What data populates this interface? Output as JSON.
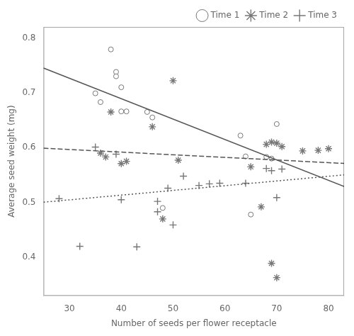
{
  "chart_data": {
    "type": "scatter",
    "xlabel": "Number of seeds per flower receptacle",
    "ylabel": "Average seed weight (mg)",
    "xlim": [
      25,
      83
    ],
    "ylim": [
      0.33,
      0.82
    ],
    "xticks": [
      30,
      40,
      50,
      60,
      70,
      80
    ],
    "yticks": [
      0.4,
      0.5,
      0.6,
      0.7,
      0.8
    ],
    "grid": false,
    "legend": "upper right",
    "series": [
      {
        "name": "Time 1",
        "marker": "circle",
        "color": "#777777",
        "x": [
          35,
          36,
          38,
          39,
          39,
          40,
          40,
          41,
          45,
          46,
          48,
          63,
          64,
          65,
          68,
          69,
          70
        ],
        "values": [
          0.699,
          0.683,
          0.779,
          0.738,
          0.73,
          0.71,
          0.666,
          0.666,
          0.665,
          0.655,
          0.49,
          0.622,
          0.584,
          0.478,
          0.583,
          0.58,
          0.643
        ],
        "fit": {
          "x": [
            25,
            83
          ],
          "values": [
            0.745,
            0.52924
          ],
          "color": "#555555",
          "line_style": "solid"
        }
      },
      {
        "name": "Time 2",
        "marker": "star",
        "color": "#777777",
        "x": [
          36,
          37,
          38,
          40,
          41,
          46,
          48,
          50,
          51,
          65,
          67,
          68,
          69,
          69,
          70,
          70,
          71,
          75,
          78,
          80
        ],
        "values": [
          0.59,
          0.583,
          0.665,
          0.571,
          0.575,
          0.638,
          0.47,
          0.722,
          0.577,
          0.565,
          0.492,
          0.606,
          0.61,
          0.389,
          0.363,
          0.608,
          0.602,
          0.594,
          0.595,
          0.598
        ],
        "fit": {
          "x": [
            25,
            83
          ],
          "values": [
            0.599,
            0.57116
          ],
          "color": "#555555",
          "line_style": "dashed"
        }
      },
      {
        "name": "Time 3",
        "marker": "plus",
        "color": "#777777",
        "x": [
          28,
          32,
          35,
          39,
          40,
          43,
          47,
          47,
          49,
          50,
          52,
          55,
          57,
          59,
          64,
          68,
          69,
          70,
          71
        ],
        "values": [
          0.507,
          0.42,
          0.601,
          0.588,
          0.505,
          0.419,
          0.502,
          0.483,
          0.526,
          0.459,
          0.548,
          0.531,
          0.534,
          0.535,
          0.535,
          0.562,
          0.558,
          0.509,
          0.561
        ],
        "fit": {
          "x": [
            25,
            83
          ],
          "values": [
            0.5005,
            0.55038
          ],
          "color": "#555555",
          "line_style": "dotted"
        }
      }
    ]
  }
}
